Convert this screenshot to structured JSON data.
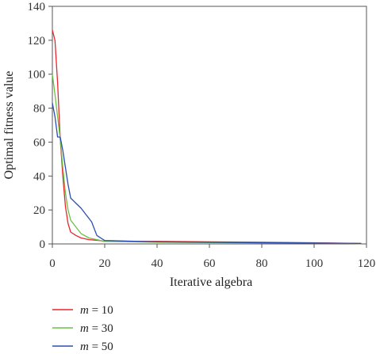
{
  "chart_data": {
    "type": "line",
    "title": "",
    "xlabel": "Iterative algebra",
    "ylabel": "Optimal fitness value",
    "xlim": [
      0,
      120
    ],
    "ylim": [
      0,
      140
    ],
    "x_ticks": [
      "0",
      "20",
      "40",
      "60",
      "80",
      "100",
      "120"
    ],
    "y_ticks": [
      "0",
      "20",
      "40",
      "60",
      "80",
      "100",
      "120",
      "140"
    ],
    "grid": false,
    "legend_position": "bottom-left",
    "series": [
      {
        "name": "m = 10",
        "name_var": "m",
        "name_rest": " = 10",
        "color": "#e8262b",
        "points": [
          [
            0,
            126
          ],
          [
            1,
            120
          ],
          [
            2,
            95
          ],
          [
            3,
            62
          ],
          [
            4,
            40
          ],
          [
            5,
            22
          ],
          [
            6,
            12
          ],
          [
            7,
            7
          ],
          [
            9,
            5
          ],
          [
            11,
            3.5
          ],
          [
            14,
            2.5
          ],
          [
            18,
            2
          ],
          [
            20,
            1.5
          ],
          [
            40,
            1.5
          ],
          [
            60,
            1.2
          ],
          [
            80,
            1
          ],
          [
            100,
            0.7
          ],
          [
            118,
            0.3
          ]
        ]
      },
      {
        "name": "m = 30",
        "name_var": "m",
        "name_rest": " = 30",
        "color": "#6cbf46",
        "points": [
          [
            0,
            100
          ],
          [
            1,
            88
          ],
          [
            2,
            75
          ],
          [
            3,
            62
          ],
          [
            4,
            45
          ],
          [
            5,
            30
          ],
          [
            6,
            20
          ],
          [
            7,
            14
          ],
          [
            9,
            10
          ],
          [
            11,
            6
          ],
          [
            14,
            3.5
          ],
          [
            17,
            2.5
          ],
          [
            20,
            1.5
          ],
          [
            40,
            1
          ],
          [
            60,
            0.8
          ],
          [
            80,
            0.6
          ],
          [
            100,
            0.5
          ],
          [
            118,
            0.2
          ]
        ]
      },
      {
        "name": "m = 50",
        "name_var": "m",
        "name_rest": " = 50",
        "color": "#2b4eb0",
        "points": [
          [
            0,
            83
          ],
          [
            1,
            75
          ],
          [
            2,
            63
          ],
          [
            3,
            63
          ],
          [
            4,
            55
          ],
          [
            5,
            45
          ],
          [
            6,
            35
          ],
          [
            7,
            27
          ],
          [
            9,
            24
          ],
          [
            11,
            21
          ],
          [
            13,
            17
          ],
          [
            15,
            13
          ],
          [
            17,
            5
          ],
          [
            20,
            2
          ],
          [
            40,
            1.2
          ],
          [
            60,
            1
          ],
          [
            80,
            0.7
          ],
          [
            100,
            0.5
          ],
          [
            118,
            0.3
          ]
        ]
      }
    ]
  }
}
